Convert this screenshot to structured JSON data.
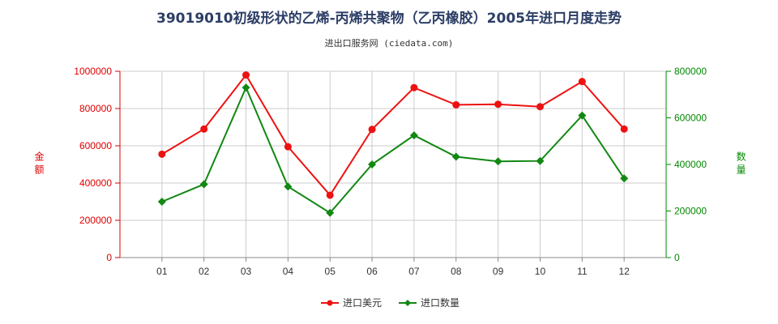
{
  "chart_data": {
    "type": "line",
    "title": "39019010初级形状的乙烯-丙烯共聚物（乙丙橡胶）2005年进口月度走势",
    "subtitle": "进出口服务网 (ciedata.com)",
    "categories": [
      "01",
      "02",
      "03",
      "04",
      "05",
      "06",
      "07",
      "08",
      "09",
      "10",
      "11",
      "12"
    ],
    "left_axis": {
      "label": "金额",
      "ylim": [
        0,
        1000000
      ],
      "ticks": [
        "0",
        "200000",
        "400000",
        "600000",
        "800000",
        "1000000"
      ],
      "tick_values": [
        0,
        200000,
        400000,
        600000,
        800000,
        1000000
      ],
      "color": "#dd0000"
    },
    "right_axis": {
      "label": "数量",
      "ylim": [
        0,
        800000
      ],
      "ticks": [
        "0",
        "200000",
        "400000",
        "600000",
        "800000"
      ],
      "tick_values": [
        0,
        200000,
        400000,
        600000,
        800000
      ],
      "color": "#008800"
    },
    "series": [
      {
        "name": "进口美元",
        "axis": "left",
        "color": "#ee1111",
        "marker": "circle",
        "values": [
          555000,
          690000,
          980000,
          595000,
          335000,
          688000,
          912000,
          820000,
          823000,
          810000,
          945000,
          690000
        ]
      },
      {
        "name": "进口数量",
        "axis": "right",
        "color": "#118811",
        "marker": "diamond",
        "values": [
          240000,
          315000,
          730000,
          305000,
          192000,
          400000,
          525000,
          433000,
          413000,
          415000,
          610000,
          340000
        ]
      }
    ],
    "legend_position": "bottom-center",
    "grid": true
  }
}
